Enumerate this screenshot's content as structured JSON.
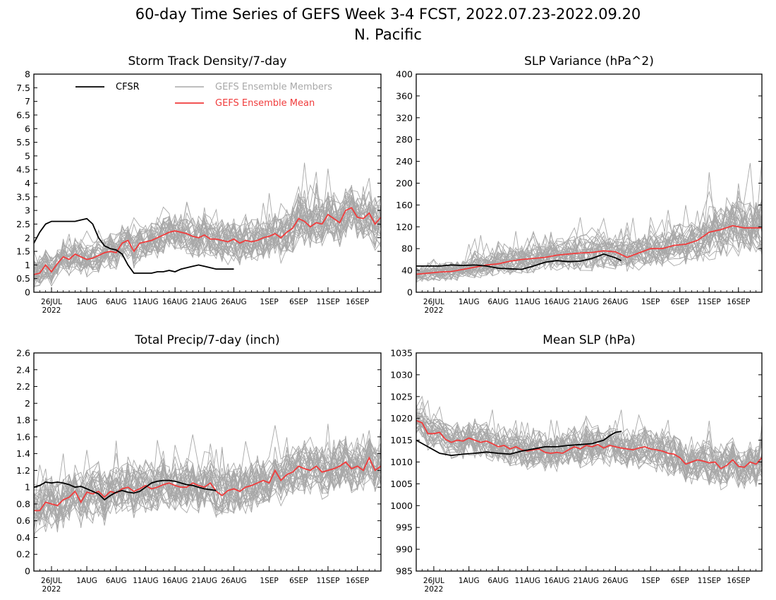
{
  "figure": {
    "title_line1": "60-day Time Series of GEFS Week 3-4 FCST, 2022.07.23-2022.09.20",
    "title_line2": "N. Pacific"
  },
  "legend": {
    "cfsr": "CFSR",
    "members": "GEFS Ensemble Members",
    "mean": "GEFS Ensemble Mean"
  },
  "colors": {
    "cfsr": "#000000",
    "members": "#a8a8a8",
    "mean": "#f03c3c"
  },
  "x_axis": {
    "ticks": [
      {
        "day": 3,
        "label": "26JUL",
        "sub": "2022"
      },
      {
        "day": 9,
        "label": "1AUG",
        "sub": ""
      },
      {
        "day": 14,
        "label": "6AUG",
        "sub": ""
      },
      {
        "day": 19,
        "label": "11AUG",
        "sub": ""
      },
      {
        "day": 24,
        "label": "16AUG",
        "sub": ""
      },
      {
        "day": 29,
        "label": "21AUG",
        "sub": ""
      },
      {
        "day": 34,
        "label": "26AUG",
        "sub": ""
      },
      {
        "day": 40,
        "label": "1SEP",
        "sub": ""
      },
      {
        "day": 45,
        "label": "6SEP",
        "sub": ""
      },
      {
        "day": 50,
        "label": "11SEP",
        "sub": ""
      },
      {
        "day": 55,
        "label": "16SEP",
        "sub": ""
      }
    ],
    "xlim": [
      0,
      59
    ]
  },
  "chart_data": [
    {
      "type": "line",
      "id": "storm",
      "title": "Storm Track Density/7-day",
      "ylim": [
        0,
        8
      ],
      "yticks": [
        "0",
        "0.5",
        "1",
        "1.5",
        "2",
        "2.5",
        "3",
        "3.5",
        "4",
        "4.5",
        "5",
        "5.5",
        "6",
        "6.5",
        "7",
        "7.5",
        "8"
      ],
      "legend": true,
      "cfsr": [
        [
          0,
          1.8
        ],
        [
          1,
          2.2
        ],
        [
          2,
          2.5
        ],
        [
          3,
          2.6
        ],
        [
          4,
          2.6
        ],
        [
          5,
          2.6
        ],
        [
          6,
          2.6
        ],
        [
          7,
          2.6
        ],
        [
          8,
          2.65
        ],
        [
          9,
          2.7
        ],
        [
          10,
          2.5
        ],
        [
          11,
          2.0
        ],
        [
          12,
          1.7
        ],
        [
          13,
          1.6
        ],
        [
          14,
          1.55
        ],
        [
          15,
          1.4
        ],
        [
          16,
          1.0
        ],
        [
          17,
          0.7
        ],
        [
          18,
          0.7
        ],
        [
          19,
          0.7
        ],
        [
          20,
          0.7
        ],
        [
          21,
          0.75
        ],
        [
          22,
          0.75
        ],
        [
          23,
          0.8
        ],
        [
          24,
          0.75
        ],
        [
          25,
          0.85
        ],
        [
          26,
          0.9
        ],
        [
          27,
          0.95
        ],
        [
          28,
          1.0
        ],
        [
          29,
          0.95
        ],
        [
          30,
          0.9
        ],
        [
          31,
          0.85
        ],
        [
          32,
          0.85
        ],
        [
          33,
          0.85
        ],
        [
          34,
          0.85
        ]
      ],
      "mean": [
        [
          0,
          0.65
        ],
        [
          1,
          0.7
        ],
        [
          2,
          1.0
        ],
        [
          3,
          0.75
        ],
        [
          4,
          1.05
        ],
        [
          5,
          1.3
        ],
        [
          6,
          1.2
        ],
        [
          7,
          1.4
        ],
        [
          8,
          1.3
        ],
        [
          9,
          1.2
        ],
        [
          10,
          1.25
        ],
        [
          11,
          1.35
        ],
        [
          12,
          1.45
        ],
        [
          13,
          1.5
        ],
        [
          14,
          1.45
        ],
        [
          15,
          1.8
        ],
        [
          16,
          1.9
        ],
        [
          17,
          1.5
        ],
        [
          18,
          1.8
        ],
        [
          19,
          1.85
        ],
        [
          20,
          1.9
        ],
        [
          21,
          2.0
        ],
        [
          22,
          2.1
        ],
        [
          23,
          2.2
        ],
        [
          24,
          2.25
        ],
        [
          25,
          2.2
        ],
        [
          26,
          2.15
        ],
        [
          27,
          2.05
        ],
        [
          28,
          2.0
        ],
        [
          29,
          2.1
        ],
        [
          30,
          1.95
        ],
        [
          31,
          1.95
        ],
        [
          32,
          1.9
        ],
        [
          33,
          1.85
        ],
        [
          34,
          1.95
        ],
        [
          35,
          1.8
        ],
        [
          36,
          1.9
        ],
        [
          37,
          1.85
        ],
        [
          38,
          1.9
        ],
        [
          39,
          2.0
        ],
        [
          40,
          2.05
        ],
        [
          41,
          2.15
        ],
        [
          42,
          2.0
        ],
        [
          43,
          2.2
        ],
        [
          44,
          2.35
        ],
        [
          45,
          2.7
        ],
        [
          46,
          2.6
        ],
        [
          47,
          2.4
        ],
        [
          48,
          2.55
        ],
        [
          49,
          2.5
        ],
        [
          50,
          2.85
        ],
        [
          51,
          2.7
        ],
        [
          52,
          2.55
        ],
        [
          53,
          3.0
        ],
        [
          54,
          3.1
        ],
        [
          55,
          2.75
        ],
        [
          56,
          2.7
        ],
        [
          57,
          2.9
        ],
        [
          58,
          2.5
        ],
        [
          59,
          2.75
        ]
      ],
      "members": {
        "count": 31,
        "spread_start": 0.45,
        "spread_end": 0.85
      }
    },
    {
      "type": "line",
      "id": "slpvar",
      "title": "SLP Variance (hPa^2)",
      "ylim": [
        0,
        400
      ],
      "yticks": [
        "0",
        "40",
        "80",
        "120",
        "160",
        "200",
        "240",
        "280",
        "320",
        "360",
        "400"
      ],
      "legend": false,
      "cfsr": [
        [
          0,
          48
        ],
        [
          2,
          48
        ],
        [
          4,
          48
        ],
        [
          6,
          50
        ],
        [
          8,
          49
        ],
        [
          10,
          50
        ],
        [
          12,
          48
        ],
        [
          14,
          44
        ],
        [
          16,
          43
        ],
        [
          18,
          42
        ],
        [
          20,
          48
        ],
        [
          22,
          55
        ],
        [
          24,
          58
        ],
        [
          26,
          56
        ],
        [
          28,
          57
        ],
        [
          30,
          62
        ],
        [
          32,
          70
        ],
        [
          34,
          63
        ],
        [
          35,
          58
        ]
      ],
      "mean": [
        [
          0,
          33
        ],
        [
          2,
          35
        ],
        [
          4,
          37
        ],
        [
          6,
          38
        ],
        [
          8,
          42
        ],
        [
          10,
          46
        ],
        [
          12,
          50
        ],
        [
          14,
          52
        ],
        [
          16,
          57
        ],
        [
          18,
          60
        ],
        [
          20,
          62
        ],
        [
          22,
          64
        ],
        [
          24,
          68
        ],
        [
          26,
          70
        ],
        [
          28,
          72
        ],
        [
          30,
          73
        ],
        [
          32,
          76
        ],
        [
          34,
          74
        ],
        [
          36,
          64
        ],
        [
          38,
          72
        ],
        [
          40,
          80
        ],
        [
          42,
          80
        ],
        [
          44,
          86
        ],
        [
          46,
          88
        ],
        [
          48,
          95
        ],
        [
          50,
          110
        ],
        [
          52,
          115
        ],
        [
          54,
          122
        ],
        [
          56,
          118
        ],
        [
          58,
          118
        ],
        [
          59,
          118
        ]
      ],
      "members": {
        "count": 31,
        "spread_start": 0.35,
        "spread_end": 0.55
      }
    },
    {
      "type": "line",
      "id": "precip",
      "title": "Total Precip/7-day (inch)",
      "ylim": [
        0,
        2.6
      ],
      "yticks": [
        "0",
        "0.2",
        "0.4",
        "0.6",
        "0.8",
        "1",
        "1.2",
        "1.4",
        "1.6",
        "1.8",
        "2",
        "2.2",
        "2.4",
        "2.6"
      ],
      "legend": false,
      "cfsr": [
        [
          0,
          1.0
        ],
        [
          1,
          1.02
        ],
        [
          2,
          1.06
        ],
        [
          3,
          1.05
        ],
        [
          4,
          1.06
        ],
        [
          5,
          1.05
        ],
        [
          6,
          1.03
        ],
        [
          7,
          1.0
        ],
        [
          8,
          1.01
        ],
        [
          9,
          0.98
        ],
        [
          10,
          0.95
        ],
        [
          11,
          0.92
        ],
        [
          12,
          0.85
        ],
        [
          13,
          0.9
        ],
        [
          14,
          0.94
        ],
        [
          15,
          0.96
        ],
        [
          16,
          0.94
        ],
        [
          17,
          0.93
        ],
        [
          18,
          0.95
        ],
        [
          19,
          1.0
        ],
        [
          20,
          1.05
        ],
        [
          21,
          1.07
        ],
        [
          22,
          1.08
        ],
        [
          23,
          1.08
        ],
        [
          24,
          1.07
        ],
        [
          25,
          1.05
        ],
        [
          26,
          1.03
        ],
        [
          27,
          1.02
        ],
        [
          28,
          1.0
        ],
        [
          29,
          0.98
        ],
        [
          30,
          0.97
        ],
        [
          31,
          0.96
        ]
      ],
      "mean": [
        [
          0,
          0.72
        ],
        [
          1,
          0.72
        ],
        [
          2,
          0.82
        ],
        [
          3,
          0.8
        ],
        [
          4,
          0.78
        ],
        [
          5,
          0.85
        ],
        [
          6,
          0.88
        ],
        [
          7,
          0.95
        ],
        [
          8,
          0.82
        ],
        [
          9,
          0.94
        ],
        [
          10,
          0.92
        ],
        [
          11,
          0.95
        ],
        [
          12,
          0.88
        ],
        [
          13,
          0.95
        ],
        [
          14,
          0.93
        ],
        [
          15,
          0.98
        ],
        [
          16,
          1.0
        ],
        [
          17,
          0.95
        ],
        [
          18,
          0.98
        ],
        [
          19,
          1.02
        ],
        [
          20,
          0.98
        ],
        [
          21,
          1.0
        ],
        [
          22,
          1.03
        ],
        [
          23,
          1.05
        ],
        [
          24,
          1.02
        ],
        [
          25,
          1.0
        ],
        [
          26,
          1.0
        ],
        [
          27,
          1.05
        ],
        [
          28,
          1.02
        ],
        [
          29,
          1.0
        ],
        [
          30,
          1.05
        ],
        [
          31,
          0.95
        ],
        [
          32,
          0.9
        ],
        [
          33,
          0.96
        ],
        [
          34,
          0.98
        ],
        [
          35,
          0.95
        ],
        [
          36,
          1.0
        ],
        [
          37,
          1.02
        ],
        [
          38,
          1.05
        ],
        [
          39,
          1.08
        ],
        [
          40,
          1.05
        ],
        [
          41,
          1.2
        ],
        [
          42,
          1.08
        ],
        [
          43,
          1.15
        ],
        [
          44,
          1.18
        ],
        [
          45,
          1.25
        ],
        [
          46,
          1.22
        ],
        [
          47,
          1.2
        ],
        [
          48,
          1.25
        ],
        [
          49,
          1.18
        ],
        [
          50,
          1.2
        ],
        [
          51,
          1.22
        ],
        [
          52,
          1.25
        ],
        [
          53,
          1.3
        ],
        [
          54,
          1.22
        ],
        [
          55,
          1.25
        ],
        [
          56,
          1.2
        ],
        [
          57,
          1.35
        ],
        [
          58,
          1.2
        ],
        [
          59,
          1.25
        ]
      ],
      "members": {
        "count": 31,
        "spread_start": 0.28,
        "spread_end": 0.25
      }
    },
    {
      "type": "line",
      "id": "mslp",
      "title": "Mean SLP (hPa)",
      "ylim": [
        985,
        1035
      ],
      "yticks": [
        "985",
        "990",
        "995",
        "1000",
        "1005",
        "1010",
        "1015",
        "1020",
        "1025",
        "1030",
        "1035"
      ],
      "legend": false,
      "cfsr": [
        [
          0,
          1015
        ],
        [
          2,
          1013.5
        ],
        [
          4,
          1012
        ],
        [
          6,
          1011.5
        ],
        [
          8,
          1011.8
        ],
        [
          10,
          1012
        ],
        [
          12,
          1012.3
        ],
        [
          14,
          1012
        ],
        [
          16,
          1011.8
        ],
        [
          18,
          1012.5
        ],
        [
          20,
          1013
        ],
        [
          22,
          1013.5
        ],
        [
          24,
          1013.5
        ],
        [
          26,
          1013.8
        ],
        [
          28,
          1014
        ],
        [
          30,
          1014.2
        ],
        [
          32,
          1015
        ],
        [
          33,
          1016
        ],
        [
          34,
          1016.8
        ],
        [
          35,
          1017
        ]
      ],
      "mean": [
        [
          0,
          1019.5
        ],
        [
          1,
          1019
        ],
        [
          2,
          1016.5
        ],
        [
          3,
          1016.5
        ],
        [
          4,
          1016.8
        ],
        [
          5,
          1015.2
        ],
        [
          6,
          1014.5
        ],
        [
          7,
          1015
        ],
        [
          8,
          1014.8
        ],
        [
          9,
          1015.5
        ],
        [
          10,
          1015
        ],
        [
          11,
          1014.5
        ],
        [
          12,
          1014.8
        ],
        [
          13,
          1014.2
        ],
        [
          14,
          1013.5
        ],
        [
          15,
          1013.8
        ],
        [
          16,
          1013
        ],
        [
          17,
          1013.5
        ],
        [
          18,
          1012.8
        ],
        [
          19,
          1012.5
        ],
        [
          20,
          1012.8
        ],
        [
          21,
          1013
        ],
        [
          22,
          1012.2
        ],
        [
          23,
          1012
        ],
        [
          24,
          1012.2
        ],
        [
          25,
          1012
        ],
        [
          26,
          1012.8
        ],
        [
          27,
          1013.5
        ],
        [
          28,
          1013
        ],
        [
          29,
          1013.8
        ],
        [
          30,
          1013.5
        ],
        [
          31,
          1014
        ],
        [
          32,
          1013.2
        ],
        [
          33,
          1013.8
        ],
        [
          34,
          1013.5
        ],
        [
          35,
          1013.2
        ],
        [
          36,
          1013
        ],
        [
          37,
          1012.8
        ],
        [
          38,
          1013.2
        ],
        [
          39,
          1013.5
        ],
        [
          40,
          1013
        ],
        [
          41,
          1012.8
        ],
        [
          42,
          1012.5
        ],
        [
          43,
          1012
        ],
        [
          44,
          1011.8
        ],
        [
          45,
          1011
        ],
        [
          46,
          1009.5
        ],
        [
          47,
          1010
        ],
        [
          48,
          1010.5
        ],
        [
          49,
          1010.2
        ],
        [
          50,
          1009.8
        ],
        [
          51,
          1010
        ],
        [
          52,
          1008.5
        ],
        [
          53,
          1009.2
        ],
        [
          54,
          1010.5
        ],
        [
          55,
          1009
        ],
        [
          56,
          1008.8
        ],
        [
          57,
          1010
        ],
        [
          58,
          1009.5
        ],
        [
          59,
          1011
        ]
      ],
      "members": {
        "count": 31,
        "spread_start": 3.2,
        "spread_end": 4.5
      }
    }
  ]
}
